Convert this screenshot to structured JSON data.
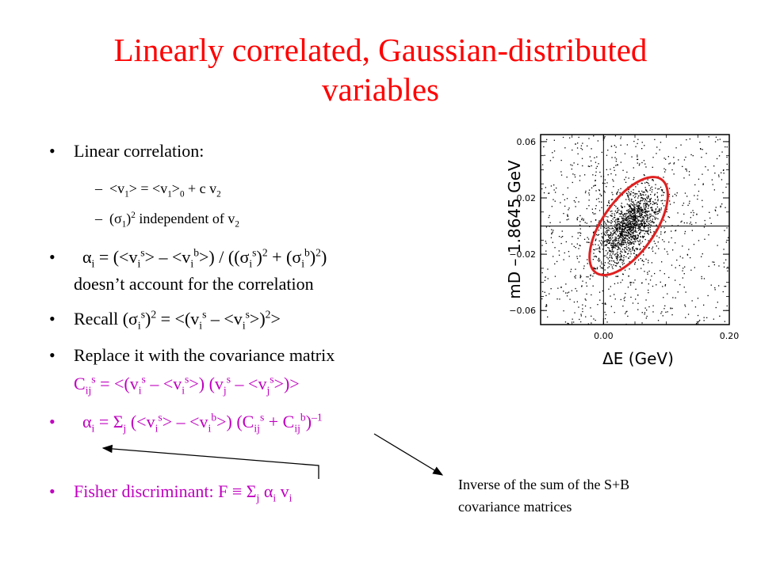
{
  "slide": {
    "title_line1": "Linearly correlated, Gaussian-distributed",
    "title_line2": "variables",
    "bullet_glyph": "•",
    "dash_glyph": "–"
  },
  "body": {
    "b1": "Linear correlation:",
    "s1": "<v1> = <v1>0 + c v2",
    "s2": "(σ1)2 independent of v2",
    "b2": "αi = (<vis> – <vib>) / ((σis)2 + (σib)2)",
    "b2_cont": "doesn’t account for the correlation",
    "b3": "Recall (σis)2 = <(vis – <vis>)2>",
    "b4": "Replace it with the covariance matrix",
    "b4_cont": "Cijs = <(vis – <vis>) (vjs – <vjs>)>",
    "b5": "αi = Σj (<vis> – <vib>) (Cijs + Cijb)–1",
    "b6": "Fisher discriminant: F ≡ Σj αi vi"
  },
  "annotation": {
    "line1": "Inverse of the sum of the S+B",
    "line2": "covariance matrices"
  },
  "chart_data": {
    "type": "scatter",
    "title": "",
    "xlabel": "ΔE (GeV)",
    "ylabel": "mD – 1.8645 GeV",
    "xlim": [
      -0.1,
      0.2
    ],
    "ylim": [
      -0.07,
      0.065
    ],
    "x_ticks": [
      "0.00",
      "0.20"
    ],
    "y_ticks": [
      "0.06",
      "0.02",
      "−0.02",
      "−0.06"
    ],
    "crosshair": {
      "x": 0.0,
      "y": 0.0
    },
    "ellipse": {
      "center_x": 0.04,
      "center_y": 0.0,
      "color": "#e02020"
    },
    "point_color": "#000000",
    "n_points": 2200
  },
  "colors": {
    "title": "#ff0000",
    "highlight": "#c000c0",
    "ellipse": "#e02020"
  }
}
